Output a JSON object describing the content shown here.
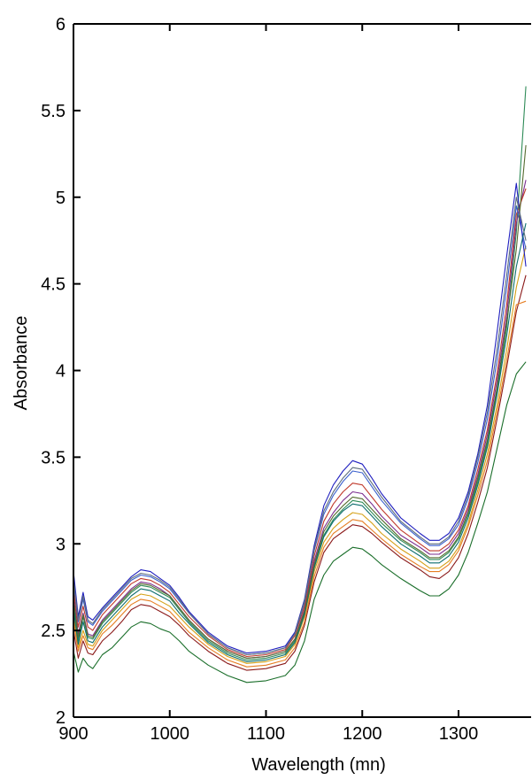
{
  "chart_data": {
    "type": "line",
    "title": "",
    "xlabel": "Wavelength (mn)",
    "ylabel": "Absorbance",
    "xlim": [
      900,
      1370
    ],
    "ylim": [
      2,
      6
    ],
    "x_ticks": [
      900,
      1000,
      1100,
      1200,
      1300
    ],
    "y_ticks": [
      "2",
      "2.5",
      "3",
      "3.5",
      "4",
      "4.5",
      "5",
      "5.5",
      "6"
    ],
    "grid": false,
    "legend": "none",
    "x": [
      900,
      905,
      910,
      915,
      920,
      930,
      940,
      950,
      960,
      970,
      980,
      990,
      1000,
      1010,
      1020,
      1040,
      1060,
      1080,
      1100,
      1120,
      1130,
      1140,
      1150,
      1160,
      1170,
      1180,
      1190,
      1200,
      1210,
      1220,
      1240,
      1260,
      1270,
      1280,
      1290,
      1300,
      1310,
      1320,
      1330,
      1340,
      1350,
      1360,
      1370
    ],
    "series": [
      {
        "color": "#1a6e2a",
        "values": [
          2.38,
          2.26,
          2.34,
          2.3,
          2.28,
          2.36,
          2.4,
          2.46,
          2.52,
          2.55,
          2.54,
          2.51,
          2.49,
          2.44,
          2.38,
          2.3,
          2.24,
          2.2,
          2.21,
          2.24,
          2.3,
          2.44,
          2.68,
          2.82,
          2.9,
          2.94,
          2.98,
          2.97,
          2.93,
          2.88,
          2.8,
          2.73,
          2.7,
          2.7,
          2.74,
          2.82,
          2.95,
          3.12,
          3.3,
          3.55,
          3.8,
          3.98,
          4.05
        ]
      },
      {
        "color": "#8b1a1a",
        "values": [
          2.5,
          2.34,
          2.44,
          2.37,
          2.36,
          2.44,
          2.49,
          2.55,
          2.62,
          2.65,
          2.64,
          2.61,
          2.58,
          2.53,
          2.47,
          2.38,
          2.31,
          2.27,
          2.28,
          2.31,
          2.38,
          2.53,
          2.78,
          2.95,
          3.03,
          3.07,
          3.11,
          3.1,
          3.06,
          3.01,
          2.92,
          2.85,
          2.81,
          2.8,
          2.84,
          2.92,
          3.06,
          3.24,
          3.44,
          3.72,
          4.02,
          4.34,
          4.55
        ]
      },
      {
        "color": "#d4a017",
        "values": [
          2.58,
          2.4,
          2.5,
          2.42,
          2.41,
          2.5,
          2.56,
          2.62,
          2.68,
          2.71,
          2.7,
          2.67,
          2.64,
          2.58,
          2.52,
          2.42,
          2.35,
          2.31,
          2.32,
          2.35,
          2.42,
          2.58,
          2.84,
          3.01,
          3.09,
          3.14,
          3.18,
          3.17,
          3.12,
          3.06,
          2.97,
          2.9,
          2.86,
          2.86,
          2.9,
          2.98,
          3.12,
          3.31,
          3.52,
          3.8,
          4.12,
          4.48,
          4.72
        ]
      },
      {
        "color": "#2e8b57",
        "values": [
          2.65,
          2.44,
          2.58,
          2.46,
          2.45,
          2.54,
          2.6,
          2.66,
          2.72,
          2.76,
          2.75,
          2.72,
          2.69,
          2.62,
          2.55,
          2.44,
          2.37,
          2.33,
          2.34,
          2.37,
          2.44,
          2.6,
          2.87,
          3.05,
          3.14,
          3.2,
          3.25,
          3.24,
          3.18,
          3.12,
          3.02,
          2.95,
          2.91,
          2.91,
          2.95,
          3.03,
          3.17,
          3.36,
          3.58,
          3.88,
          4.25,
          4.8,
          5.64
        ]
      },
      {
        "color": "#7b2d8e",
        "values": [
          2.7,
          2.48,
          2.6,
          2.48,
          2.47,
          2.56,
          2.62,
          2.68,
          2.74,
          2.78,
          2.77,
          2.74,
          2.7,
          2.63,
          2.56,
          2.45,
          2.38,
          2.34,
          2.35,
          2.38,
          2.45,
          2.62,
          2.9,
          3.09,
          3.18,
          3.25,
          3.3,
          3.29,
          3.23,
          3.16,
          3.05,
          2.98,
          2.94,
          2.94,
          2.98,
          3.06,
          3.2,
          3.4,
          3.63,
          3.94,
          4.32,
          4.85,
          5.1
        ]
      },
      {
        "color": "#c0392b",
        "values": [
          2.74,
          2.52,
          2.64,
          2.52,
          2.5,
          2.59,
          2.65,
          2.71,
          2.77,
          2.8,
          2.79,
          2.76,
          2.72,
          2.65,
          2.58,
          2.47,
          2.39,
          2.35,
          2.36,
          2.39,
          2.47,
          2.64,
          2.93,
          3.13,
          3.23,
          3.3,
          3.35,
          3.34,
          3.27,
          3.2,
          3.08,
          3.0,
          2.96,
          2.96,
          3.0,
          3.08,
          3.22,
          3.43,
          3.66,
          3.98,
          4.38,
          4.9,
          5.05
        ]
      },
      {
        "color": "#3a5fcd",
        "values": [
          2.78,
          2.55,
          2.68,
          2.55,
          2.53,
          2.61,
          2.67,
          2.73,
          2.79,
          2.82,
          2.81,
          2.78,
          2.74,
          2.67,
          2.6,
          2.48,
          2.4,
          2.36,
          2.37,
          2.4,
          2.48,
          2.66,
          2.96,
          3.17,
          3.28,
          3.36,
          3.42,
          3.41,
          3.33,
          3.25,
          3.12,
          3.03,
          2.99,
          2.99,
          3.03,
          3.11,
          3.26,
          3.47,
          3.72,
          4.06,
          4.48,
          4.95,
          4.7
        ]
      },
      {
        "color": "#1f1fbf",
        "values": [
          2.84,
          2.58,
          2.72,
          2.58,
          2.56,
          2.63,
          2.69,
          2.75,
          2.81,
          2.85,
          2.84,
          2.8,
          2.76,
          2.69,
          2.61,
          2.49,
          2.41,
          2.37,
          2.38,
          2.41,
          2.49,
          2.68,
          2.99,
          3.22,
          3.34,
          3.42,
          3.48,
          3.46,
          3.38,
          3.29,
          3.15,
          3.06,
          3.02,
          3.02,
          3.06,
          3.15,
          3.3,
          3.52,
          3.8,
          4.22,
          4.66,
          5.08,
          4.6
        ]
      },
      {
        "color": "#0e6e6e",
        "values": [
          2.62,
          2.42,
          2.55,
          2.44,
          2.43,
          2.52,
          2.58,
          2.64,
          2.7,
          2.74,
          2.73,
          2.7,
          2.67,
          2.6,
          2.54,
          2.43,
          2.36,
          2.32,
          2.33,
          2.36,
          2.43,
          2.59,
          2.86,
          3.04,
          3.13,
          3.19,
          3.23,
          3.22,
          3.16,
          3.1,
          3.0,
          2.93,
          2.89,
          2.89,
          2.93,
          3.01,
          3.15,
          3.34,
          3.56,
          3.86,
          4.2,
          4.6,
          4.85
        ]
      },
      {
        "color": "#e67e22",
        "values": [
          2.55,
          2.38,
          2.47,
          2.4,
          2.39,
          2.48,
          2.53,
          2.59,
          2.65,
          2.68,
          2.67,
          2.64,
          2.61,
          2.55,
          2.49,
          2.4,
          2.33,
          2.29,
          2.3,
          2.33,
          2.4,
          2.55,
          2.81,
          2.98,
          3.06,
          3.1,
          3.14,
          3.13,
          3.08,
          3.03,
          2.94,
          2.87,
          2.84,
          2.84,
          2.88,
          2.96,
          3.1,
          3.28,
          3.48,
          3.76,
          4.06,
          4.38,
          4.4
        ]
      },
      {
        "color": "#556b2f",
        "values": [
          2.68,
          2.46,
          2.59,
          2.47,
          2.46,
          2.55,
          2.61,
          2.67,
          2.73,
          2.77,
          2.76,
          2.73,
          2.7,
          2.63,
          2.56,
          2.45,
          2.38,
          2.34,
          2.35,
          2.38,
          2.45,
          2.61,
          2.88,
          3.07,
          3.16,
          3.22,
          3.27,
          3.26,
          3.2,
          3.14,
          3.03,
          2.96,
          2.92,
          2.92,
          2.96,
          3.04,
          3.18,
          3.38,
          3.6,
          3.9,
          4.28,
          4.7,
          5.3
        ]
      },
      {
        "color": "#5d6d7e",
        "values": [
          2.8,
          2.56,
          2.7,
          2.56,
          2.54,
          2.62,
          2.68,
          2.74,
          2.8,
          2.83,
          2.82,
          2.79,
          2.75,
          2.68,
          2.6,
          2.48,
          2.4,
          2.36,
          2.37,
          2.4,
          2.48,
          2.67,
          2.97,
          3.19,
          3.3,
          3.38,
          3.44,
          3.43,
          3.35,
          3.27,
          3.13,
          3.04,
          3.0,
          3.0,
          3.04,
          3.13,
          3.28,
          3.5,
          3.76,
          4.12,
          4.55,
          5.0,
          4.75
        ]
      }
    ]
  }
}
